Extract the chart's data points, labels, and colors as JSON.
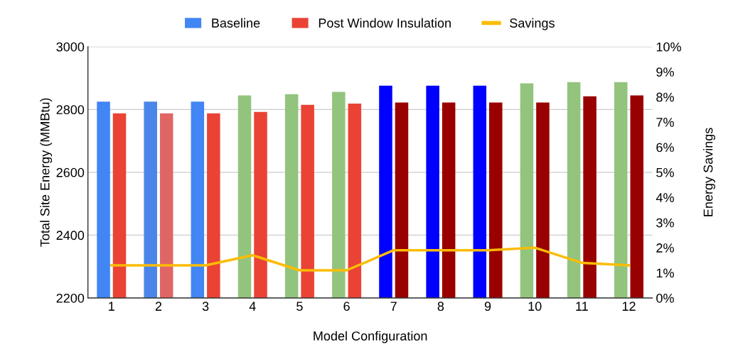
{
  "chart_data": {
    "type": "bar",
    "xlabel": "Model Configuration",
    "ylabel": "Total Site Energy (MMBtu)",
    "y2label": "Energy Savings",
    "categories": [
      "1",
      "2",
      "3",
      "4",
      "5",
      "6",
      "7",
      "8",
      "9",
      "10",
      "11",
      "12"
    ],
    "series": [
      {
        "name": "Baseline",
        "color": "#4285f4",
        "colors": [
          "#4285f4",
          "#4a86e8",
          "#4285f4",
          "#93c47d",
          "#93c47d",
          "#93c47d",
          "#0000ff",
          "#0000ff",
          "#0000ff",
          "#93c47d",
          "#93c47d",
          "#93c47d"
        ],
        "values": [
          2825,
          2825,
          2825,
          2845,
          2849,
          2856,
          2876,
          2876,
          2876,
          2883,
          2887,
          2887
        ]
      },
      {
        "name": "Post Window Insulation",
        "color": "#ea4335",
        "colors": [
          "#ea4335",
          "#e06666",
          "#ea4335",
          "#ea4335",
          "#ea4335",
          "#ea4335",
          "#990000",
          "#990000",
          "#990000",
          "#990000",
          "#990000",
          "#990000"
        ],
        "values": [
          2788,
          2788,
          2788,
          2792,
          2815,
          2819,
          2822,
          2822,
          2822,
          2822,
          2842,
          2845
        ]
      },
      {
        "name": "Savings",
        "type": "line",
        "axis": "y2",
        "color": "#fbbc04",
        "values": [
          1.3,
          1.3,
          1.3,
          1.7,
          1.1,
          1.1,
          1.9,
          1.9,
          1.9,
          2.0,
          1.4,
          1.3
        ]
      }
    ],
    "ylim": [
      2200,
      3000
    ],
    "yticks": [
      2200,
      2400,
      2600,
      2800,
      3000
    ],
    "y2lim": [
      0,
      10
    ],
    "y2ticks": [
      {
        "value": 0,
        "label": "0%"
      },
      {
        "value": 1,
        "label": "1%"
      },
      {
        "value": 2,
        "label": "2%"
      },
      {
        "value": 3,
        "label": "3%"
      },
      {
        "value": 4,
        "label": "4%"
      },
      {
        "value": 5,
        "label": "5%"
      },
      {
        "value": 6,
        "label": "6%"
      },
      {
        "value": 7,
        "label": "7%"
      },
      {
        "value": 8,
        "label": "8%"
      },
      {
        "value": 9,
        "label": "9%"
      },
      {
        "value": 10,
        "label": "10%"
      }
    ],
    "grid": "y",
    "legend": "top",
    "marker": "none"
  }
}
